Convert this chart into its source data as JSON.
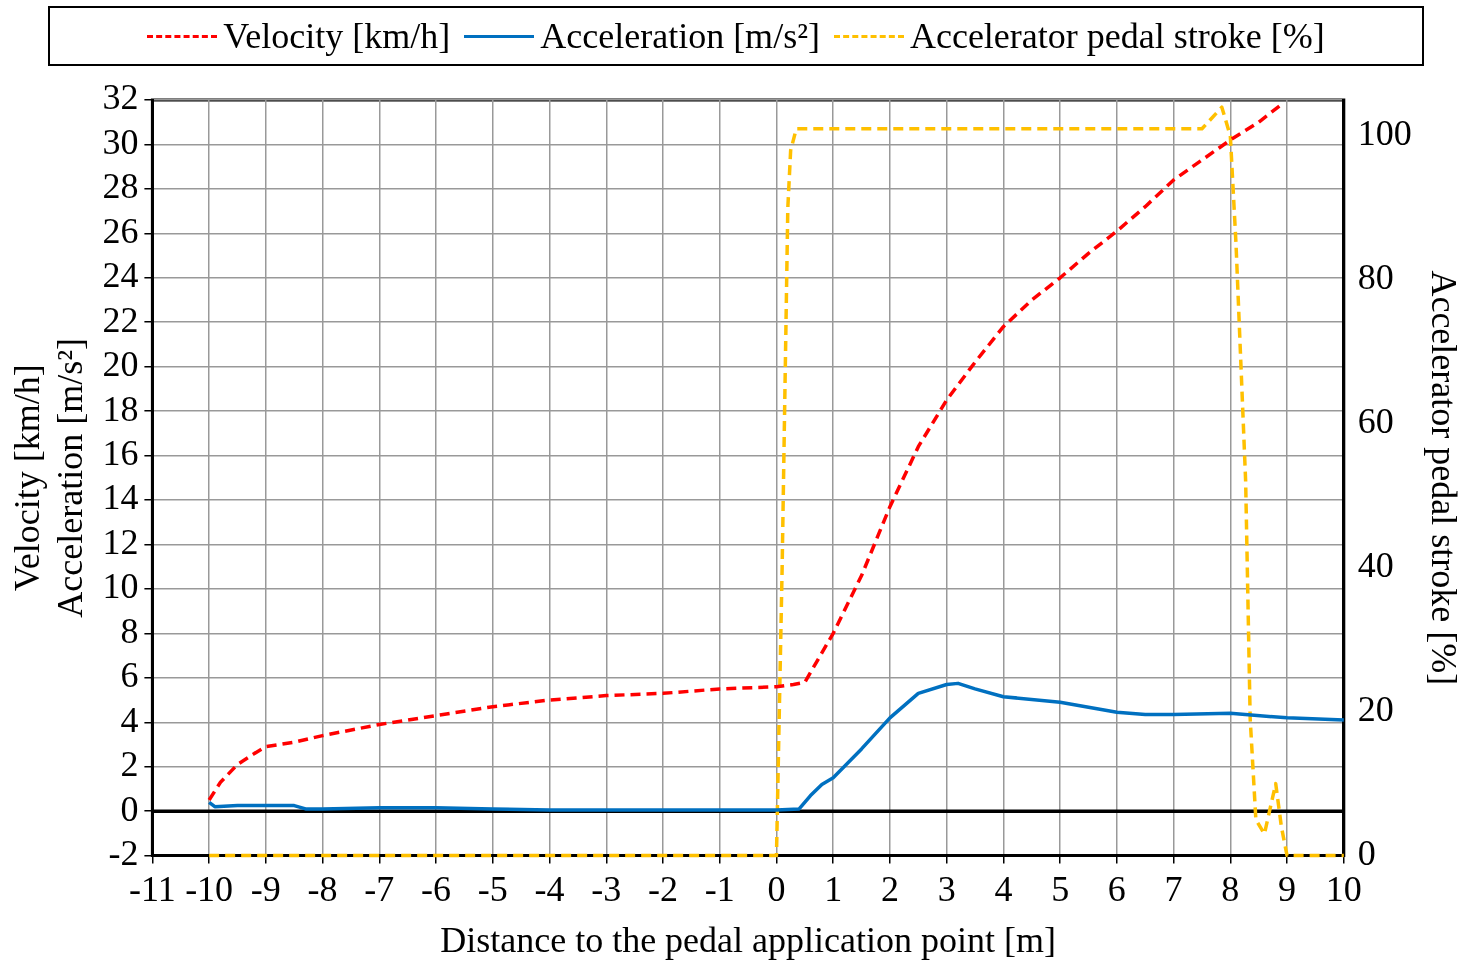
{
  "chart_data": {
    "type": "line",
    "xlabel": "Distance to the pedal application point [m]",
    "ylabel": "Velocity [km/h]\nAcceleration [m/s²]",
    "y2label": "Accelerator pedal stroke [%]",
    "xlim": [
      -11,
      10
    ],
    "xticks": [
      -11,
      -10,
      -9,
      -8,
      -7,
      -6,
      -5,
      -4,
      -3,
      -2,
      -1,
      0,
      1,
      2,
      3,
      4,
      5,
      6,
      7,
      8,
      9,
      10
    ],
    "ylim": [
      -2,
      32
    ],
    "yticks": [
      -2,
      0,
      2,
      4,
      6,
      8,
      10,
      12,
      14,
      16,
      18,
      20,
      22,
      24,
      26,
      28,
      30,
      32
    ],
    "y2lim": [
      0,
      105
    ],
    "y2ticks": [
      0,
      20,
      40,
      60,
      80,
      100
    ],
    "grid": true,
    "legend": "top",
    "marker": "none",
    "ref_lines": [
      {
        "axis": "y",
        "value": 0,
        "color": "#000000",
        "line_style": "solid"
      }
    ],
    "series": [
      {
        "name": "Velocity [km/h]",
        "color": "#ff0000",
        "line_style": "dashed",
        "x": [
          -10,
          -9.8,
          -9.5,
          -9.2,
          -9,
          -8.5,
          -8,
          -7,
          -6,
          -5,
          -4,
          -3,
          -2,
          -1,
          0,
          0.3,
          0.5,
          1,
          1.5,
          2,
          2.5,
          3,
          3.5,
          4,
          4.5,
          5,
          5.5,
          6,
          6.5,
          7,
          7.5,
          8,
          8.5,
          8.9
        ],
        "values": [
          0.5,
          1.3,
          2.1,
          2.6,
          2.9,
          3.1,
          3.4,
          3.9,
          4.3,
          4.7,
          5.0,
          5.2,
          5.3,
          5.5,
          5.6,
          5.7,
          5.8,
          8.0,
          10.6,
          13.7,
          16.4,
          18.5,
          20.2,
          21.8,
          23.0,
          24.0,
          25.1,
          26.1,
          27.2,
          28.4,
          29.3,
          30.2,
          31.0,
          31.8
        ]
      },
      {
        "name": "Acceleration [m/s²]",
        "color": "#0070c0",
        "line_style": "solid",
        "x": [
          -10,
          -9.9,
          -9.5,
          -9,
          -8.5,
          -8.3,
          -8,
          -7,
          -6,
          -5,
          -4,
          -3,
          -2,
          -1,
          0,
          0.4,
          0.6,
          0.8,
          1,
          1.5,
          2,
          2.5,
          3,
          3.2,
          3.5,
          4,
          5,
          6,
          6.5,
          7,
          8,
          9,
          10
        ],
        "values": [
          0.4,
          0.2,
          0.25,
          0.25,
          0.25,
          0.1,
          0.1,
          0.15,
          0.15,
          0.1,
          0.05,
          0.05,
          0.05,
          0.05,
          0.05,
          0.1,
          0.7,
          1.2,
          1.5,
          2.8,
          4.2,
          5.3,
          5.7,
          5.75,
          5.5,
          5.15,
          4.9,
          4.45,
          4.35,
          4.35,
          4.4,
          4.2,
          4.1
        ]
      },
      {
        "name": "Accelerator pedal stroke [%]",
        "color": "#ffc000",
        "line_style": "dashed",
        "axis": "y2",
        "x": [
          -10,
          0,
          0.1,
          0.2,
          0.25,
          0.35,
          7.5,
          7.85,
          8.0,
          8.1,
          8.27,
          8.35,
          8.45,
          8.6,
          8.8,
          8.9,
          9.0,
          10
        ],
        "values": [
          0,
          0,
          40,
          90,
          98,
          101,
          101,
          104,
          100,
          85,
          52,
          19,
          5,
          3,
          10,
          4,
          0,
          0
        ]
      }
    ]
  }
}
